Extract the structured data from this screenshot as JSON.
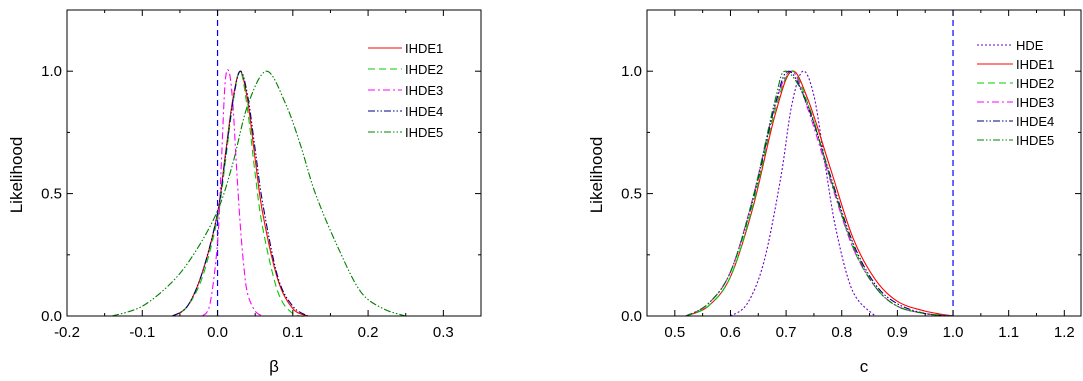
{
  "chart_data": [
    {
      "type": "line",
      "xlabel": "β",
      "ylabel": "Likelihood",
      "xlim": [
        -0.2,
        0.35
      ],
      "ylim": [
        0.0,
        1.25
      ],
      "xticks": [
        "-0.2",
        "-0.1",
        "0.0",
        "0.1",
        "0.2",
        "0.3"
      ],
      "yticks": [
        "0.0",
        "0.5",
        "1.0"
      ],
      "legend_position": "top-right",
      "reference_line": {
        "x": 0.0,
        "color": "#0000ff",
        "style": "dashed"
      },
      "series": [
        {
          "name": "IHDE1",
          "color": "#ff0000",
          "dash": "solid",
          "x": [
            -0.06,
            -0.04,
            -0.02,
            0.0,
            0.01,
            0.02,
            0.03,
            0.04,
            0.05,
            0.06,
            0.08,
            0.1,
            0.12
          ],
          "y": [
            0.0,
            0.04,
            0.18,
            0.42,
            0.65,
            0.88,
            1.0,
            0.88,
            0.64,
            0.42,
            0.15,
            0.03,
            0.0
          ]
        },
        {
          "name": "IHDE2",
          "color": "#00cc00",
          "dash": "long-dash",
          "x": [
            -0.06,
            -0.04,
            -0.02,
            0.0,
            0.01,
            0.02,
            0.03,
            0.04,
            0.05,
            0.06,
            0.08,
            0.1,
            0.12
          ],
          "y": [
            0.0,
            0.04,
            0.16,
            0.4,
            0.62,
            0.86,
            1.0,
            0.84,
            0.58,
            0.36,
            0.1,
            0.01,
            0.0
          ]
        },
        {
          "name": "IHDE3",
          "color": "#ff00ff",
          "dash": "dash-dot",
          "x": [
            -0.02,
            -0.01,
            0.0,
            0.005,
            0.01,
            0.015,
            0.02,
            0.025,
            0.03,
            0.035,
            0.04,
            0.05,
            0.06
          ],
          "y": [
            0.0,
            0.05,
            0.3,
            0.62,
            0.95,
            1.0,
            0.88,
            0.62,
            0.38,
            0.2,
            0.09,
            0.02,
            0.0
          ]
        },
        {
          "name": "IHDE4",
          "color": "#000080",
          "dash": "dash-dot-dot",
          "x": [
            -0.06,
            -0.04,
            -0.02,
            0.0,
            0.01,
            0.02,
            0.03,
            0.04,
            0.05,
            0.06,
            0.08,
            0.1,
            0.12
          ],
          "y": [
            0.0,
            0.04,
            0.18,
            0.42,
            0.64,
            0.87,
            1.0,
            0.9,
            0.68,
            0.46,
            0.16,
            0.04,
            0.0
          ]
        },
        {
          "name": "IHDE5",
          "color": "#008000",
          "dash": "dash-dot-dot",
          "x": [
            -0.14,
            -0.1,
            -0.06,
            -0.03,
            0.0,
            0.02,
            0.04,
            0.065,
            0.09,
            0.11,
            0.13,
            0.16,
            0.19,
            0.22,
            0.25
          ],
          "y": [
            0.0,
            0.04,
            0.14,
            0.26,
            0.43,
            0.62,
            0.86,
            1.0,
            0.87,
            0.7,
            0.5,
            0.28,
            0.1,
            0.03,
            0.0
          ]
        }
      ]
    },
    {
      "type": "line",
      "xlabel": "c",
      "ylabel": "Likelihood",
      "xlim": [
        0.45,
        1.23
      ],
      "ylim": [
        0.0,
        1.25
      ],
      "xticks": [
        "0.5",
        "0.6",
        "0.7",
        "0.8",
        "0.9",
        "1.0",
        "1.1",
        "1.2"
      ],
      "yticks": [
        "0.0",
        "0.5",
        "1.0"
      ],
      "legend_position": "top-right",
      "reference_line": {
        "x": 1.0,
        "color": "#0000ff",
        "style": "dashed"
      },
      "series": [
        {
          "name": "HDE",
          "color": "#6a00c8",
          "dash": "dotted",
          "x": [
            0.6,
            0.63,
            0.66,
            0.69,
            0.71,
            0.73,
            0.75,
            0.77,
            0.79,
            0.82,
            0.86
          ],
          "y": [
            0.0,
            0.05,
            0.22,
            0.56,
            0.86,
            1.0,
            0.9,
            0.62,
            0.35,
            0.1,
            0.0
          ]
        },
        {
          "name": "IHDE1",
          "color": "#ff0000",
          "dash": "solid",
          "x": [
            0.52,
            0.56,
            0.6,
            0.64,
            0.68,
            0.71,
            0.74,
            0.78,
            0.82,
            0.86,
            0.9,
            0.95,
            1.0
          ],
          "y": [
            0.0,
            0.04,
            0.16,
            0.44,
            0.82,
            1.0,
            0.88,
            0.6,
            0.32,
            0.15,
            0.06,
            0.02,
            0.0
          ]
        },
        {
          "name": "IHDE2",
          "color": "#00cc00",
          "dash": "long-dash",
          "x": [
            0.52,
            0.56,
            0.6,
            0.64,
            0.68,
            0.71,
            0.74,
            0.78,
            0.82,
            0.86,
            0.9,
            0.95,
            1.0
          ],
          "y": [
            0.0,
            0.04,
            0.16,
            0.45,
            0.84,
            1.0,
            0.86,
            0.56,
            0.28,
            0.12,
            0.04,
            0.01,
            0.0
          ]
        },
        {
          "name": "IHDE3",
          "color": "#ff00ff",
          "dash": "dash-dot",
          "x": [
            0.52,
            0.56,
            0.6,
            0.64,
            0.68,
            0.71,
            0.74,
            0.78,
            0.82,
            0.86,
            0.9,
            0.95,
            1.0
          ],
          "y": [
            0.0,
            0.05,
            0.18,
            0.48,
            0.86,
            1.0,
            0.84,
            0.55,
            0.28,
            0.12,
            0.04,
            0.01,
            0.0
          ]
        },
        {
          "name": "IHDE4",
          "color": "#000080",
          "dash": "dash-dot-dot",
          "x": [
            0.52,
            0.56,
            0.6,
            0.64,
            0.68,
            0.705,
            0.74,
            0.78,
            0.82,
            0.86,
            0.9,
            0.95,
            1.0
          ],
          "y": [
            0.0,
            0.05,
            0.18,
            0.47,
            0.86,
            1.0,
            0.85,
            0.57,
            0.3,
            0.13,
            0.05,
            0.01,
            0.0
          ]
        },
        {
          "name": "IHDE5",
          "color": "#008000",
          "dash": "dash-dot-dot",
          "x": [
            0.52,
            0.56,
            0.6,
            0.64,
            0.68,
            0.7,
            0.74,
            0.78,
            0.82,
            0.86,
            0.9,
            0.95,
            1.0
          ],
          "y": [
            0.0,
            0.05,
            0.18,
            0.48,
            0.88,
            1.0,
            0.86,
            0.56,
            0.29,
            0.12,
            0.04,
            0.01,
            0.0
          ]
        }
      ]
    }
  ]
}
